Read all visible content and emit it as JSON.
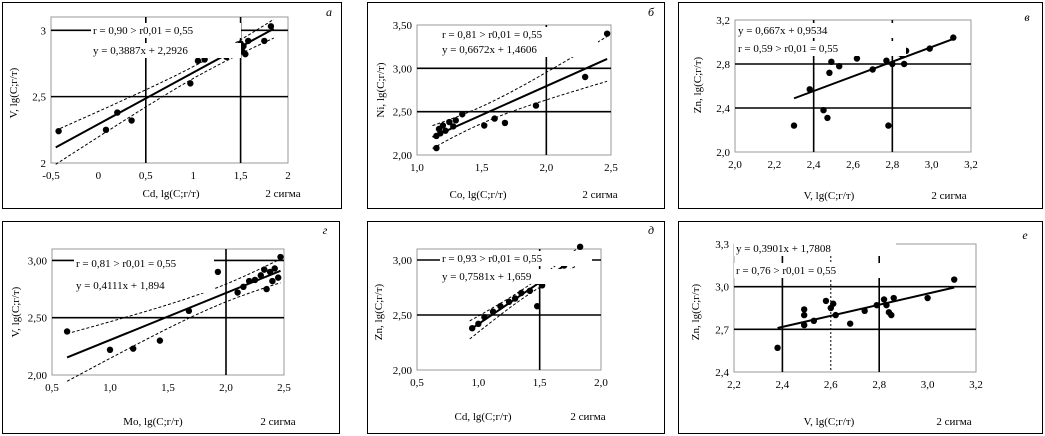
{
  "chart_data": [
    {
      "type": "scatter",
      "panel_letter": "а",
      "xlabel": "Cd, lg(C;г/т)",
      "ylabel": "V, lg(C;г/т)",
      "sigma_label": "2 сигма",
      "annotations": [
        "r = 0,90 > r0,01 = 0,55",
        "y = 0,3887x + 2,2926"
      ],
      "xlim": [
        -0.5,
        2
      ],
      "ylim": [
        2,
        3.1
      ],
      "xticks": [
        "-0,5",
        "0",
        "0,5",
        "1",
        "1,5",
        "2"
      ],
      "yticks": [
        "2",
        "2,5",
        "3"
      ],
      "x_tick_values": [
        -0.5,
        0,
        0.5,
        1,
        1.5,
        2
      ],
      "y_tick_values": [
        2,
        2.5,
        3
      ],
      "grid_x": [
        0.5,
        1.5
      ],
      "grid_y": [
        2.5,
        3
      ],
      "points": [
        [
          -0.42,
          2.24
        ],
        [
          0.08,
          2.25
        ],
        [
          0.2,
          2.38
        ],
        [
          0.35,
          2.32
        ],
        [
          0.97,
          2.6
        ],
        [
          1.05,
          2.77
        ],
        [
          1.08,
          2.83
        ],
        [
          1.12,
          2.78
        ],
        [
          1.15,
          2.85
        ],
        [
          1.2,
          2.82
        ],
        [
          1.27,
          2.87
        ],
        [
          1.35,
          2.8
        ],
        [
          1.45,
          2.88
        ],
        [
          1.48,
          2.86
        ],
        [
          1.5,
          2.9
        ],
        [
          1.52,
          2.84
        ],
        [
          1.53,
          2.88
        ],
        [
          1.55,
          2.82
        ],
        [
          1.58,
          2.92
        ],
        [
          1.75,
          2.92
        ],
        [
          1.82,
          3.03
        ]
      ],
      "fit": {
        "slope": 0.3887,
        "intercept": 2.2926,
        "x_range": [
          -0.45,
          1.85
        ]
      },
      "confidence_band": true
    },
    {
      "type": "scatter",
      "panel_letter": "б",
      "xlabel": "Co, lg(C;г/т)",
      "ylabel": "Ni, lg(C;г/т)",
      "sigma_label": "2 сигма",
      "annotations": [
        "r = 0,81 > r0,01 = 0,55",
        "y = 0,6672x + 1,4606"
      ],
      "xlim": [
        1,
        2.5
      ],
      "ylim": [
        2,
        3.5
      ],
      "xticks": [
        "1,0",
        "1,5",
        "2,0",
        "2,5"
      ],
      "yticks": [
        "2,00",
        "2,50",
        "3,00",
        "3,50"
      ],
      "x_tick_values": [
        1,
        1.5,
        2,
        2.5
      ],
      "y_tick_values": [
        2,
        2.5,
        3,
        3.5
      ],
      "grid_x": [
        2
      ],
      "grid_y": [
        2.5,
        3
      ],
      "points": [
        [
          1.15,
          2.08
        ],
        [
          1.15,
          2.22
        ],
        [
          1.17,
          2.3
        ],
        [
          1.18,
          2.25
        ],
        [
          1.2,
          2.34
        ],
        [
          1.22,
          2.28
        ],
        [
          1.25,
          2.38
        ],
        [
          1.28,
          2.33
        ],
        [
          1.3,
          2.4
        ],
        [
          1.35,
          2.47
        ],
        [
          1.52,
          2.34
        ],
        [
          1.6,
          2.42
        ],
        [
          1.68,
          2.37
        ],
        [
          1.92,
          2.57
        ],
        [
          2.3,
          2.9
        ],
        [
          2.47,
          3.4
        ]
      ],
      "fit": {
        "slope": 0.6672,
        "intercept": 1.4606,
        "x_range": [
          1.12,
          2.47
        ]
      },
      "confidence_band": true
    },
    {
      "type": "scatter",
      "panel_letter": "в",
      "xlabel": "V, lg(C;г/т)",
      "ylabel": "Zn, lg(C;г/т)",
      "sigma_label": "2 сигма",
      "annotations": [
        "y = 0,667x + 0,9534",
        "r = 0,59 > r0,01 = 0,55"
      ],
      "xlim": [
        2,
        3.2
      ],
      "ylim": [
        2,
        3.2
      ],
      "xticks": [
        "2,0",
        "2,2",
        "2,4",
        "2,6",
        "2,8",
        "3,0",
        "3,2"
      ],
      "yticks": [
        "2,0",
        "2,4",
        "2,8",
        "3,2"
      ],
      "x_tick_values": [
        2,
        2.2,
        2.4,
        2.6,
        2.8,
        3,
        3.2
      ],
      "y_tick_values": [
        2,
        2.4,
        2.8,
        3.2
      ],
      "grid_x": [
        2.4,
        2.8
      ],
      "grid_y": [
        2.4,
        2.8
      ],
      "points": [
        [
          2.3,
          2.24
        ],
        [
          2.38,
          2.57
        ],
        [
          2.45,
          2.38
        ],
        [
          2.47,
          2.31
        ],
        [
          2.48,
          2.72
        ],
        [
          2.49,
          2.82
        ],
        [
          2.53,
          2.78
        ],
        [
          2.58,
          2.92
        ],
        [
          2.62,
          2.9
        ],
        [
          2.62,
          2.85
        ],
        [
          2.7,
          2.75
        ],
        [
          2.77,
          2.83
        ],
        [
          2.78,
          2.24
        ],
        [
          2.8,
          2.8
        ],
        [
          2.83,
          2.9
        ],
        [
          2.85,
          2.88
        ],
        [
          2.86,
          2.8
        ],
        [
          2.87,
          2.92
        ],
        [
          2.99,
          2.94
        ],
        [
          3.11,
          3.04
        ]
      ],
      "fit": {
        "slope": 0.667,
        "intercept": 0.9534,
        "x_range": [
          2.3,
          3.11
        ]
      },
      "confidence_band": false
    },
    {
      "type": "scatter",
      "panel_letter": "г",
      "xlabel": "Mo, lg(C;г/т)",
      "ylabel": "V, lg(C;г/т)",
      "sigma_label": "2 сигма",
      "annotations": [
        "r = 0,81 > r0,01 = 0,55",
        "y = 0,4111x + 1,894"
      ],
      "xlim": [
        0.5,
        2.5
      ],
      "ylim": [
        2,
        3.1
      ],
      "xticks": [
        "0,5",
        "1,0",
        "1,5",
        "2,0",
        "2,5"
      ],
      "yticks": [
        "2,00",
        "2,50",
        "3,00"
      ],
      "x_tick_values": [
        0.5,
        1,
        1.5,
        2,
        2.5
      ],
      "y_tick_values": [
        2,
        2.5,
        3
      ],
      "grid_x": [
        2
      ],
      "grid_y": [
        2.5,
        3
      ],
      "points": [
        [
          0.63,
          2.38
        ],
        [
          1.0,
          2.22
        ],
        [
          1.2,
          2.23
        ],
        [
          1.43,
          2.3
        ],
        [
          1.68,
          2.56
        ],
        [
          1.93,
          2.9
        ],
        [
          2.1,
          2.72
        ],
        [
          2.15,
          2.77
        ],
        [
          2.2,
          2.82
        ],
        [
          2.25,
          2.83
        ],
        [
          2.3,
          2.87
        ],
        [
          2.33,
          2.92
        ],
        [
          2.35,
          2.75
        ],
        [
          2.38,
          2.9
        ],
        [
          2.4,
          2.82
        ],
        [
          2.42,
          2.93
        ],
        [
          2.45,
          2.85
        ],
        [
          2.47,
          3.03
        ]
      ],
      "fit": {
        "slope": 0.4111,
        "intercept": 1.894,
        "x_range": [
          0.63,
          2.47
        ]
      },
      "confidence_band": true
    },
    {
      "type": "scatter",
      "panel_letter": "д",
      "xlabel": "Cd, lg(C;г/т)",
      "ylabel": "Zn, lg(C;г/т)",
      "sigma_label": "2 сигма",
      "annotations": [
        "r = 0,93 > r0,01 = 0,55",
        "y = 0,7581x + 1,659"
      ],
      "xlim": [
        0.5,
        2
      ],
      "ylim": [
        2,
        3.1
      ],
      "xticks": [
        "0,5",
        "1,0",
        "1,5",
        "2,0"
      ],
      "yticks": [
        "2,00",
        "2,50",
        "3,00"
      ],
      "x_tick_values": [
        0.5,
        1,
        1.5,
        2
      ],
      "y_tick_values": [
        2,
        2.5,
        3
      ],
      "grid_x": [
        1.5
      ],
      "grid_y": [
        2.5,
        3
      ],
      "points": [
        [
          0.95,
          2.38
        ],
        [
          1.0,
          2.42
        ],
        [
          1.05,
          2.48
        ],
        [
          1.12,
          2.53
        ],
        [
          1.18,
          2.58
        ],
        [
          1.25,
          2.62
        ],
        [
          1.3,
          2.65
        ],
        [
          1.35,
          2.7
        ],
        [
          1.42,
          2.72
        ],
        [
          1.48,
          2.58
        ],
        [
          1.5,
          2.8
        ],
        [
          1.52,
          2.77
        ],
        [
          1.58,
          2.85
        ],
        [
          1.62,
          2.88
        ],
        [
          1.7,
          2.95
        ],
        [
          1.75,
          3.0
        ],
        [
          1.83,
          3.12
        ]
      ],
      "fit": {
        "slope": 0.7581,
        "intercept": 1.659,
        "x_range": [
          0.93,
          1.84
        ]
      },
      "confidence_band": true
    },
    {
      "type": "scatter",
      "panel_letter": "е",
      "xlabel": "V, lg(C;г/т)",
      "ylabel": "Zn, lg(C;г/т)",
      "sigma_label": "2 сигма",
      "annotations": [
        "y = 0,3901x + 1,7808",
        "r = 0,76 > r0,01 = 0,55"
      ],
      "xlim": [
        2.2,
        3.2
      ],
      "ylim": [
        2.4,
        3.3
      ],
      "xticks": [
        "2,2",
        "2,4",
        "2,6",
        "2,8",
        "3,0",
        "3,2"
      ],
      "yticks": [
        "2,4",
        "2,7",
        "3,0",
        "3,3"
      ],
      "x_tick_values": [
        2.2,
        2.4,
        2.6,
        2.8,
        3,
        3.2
      ],
      "y_tick_values": [
        2.4,
        2.7,
        3,
        3.3
      ],
      "grid_x": [
        2.4,
        2.8
      ],
      "grid_y": [
        2.7,
        3
      ],
      "dashed_x": [
        2.6
      ],
      "points": [
        [
          2.38,
          2.57
        ],
        [
          2.49,
          2.73
        ],
        [
          2.49,
          2.8
        ],
        [
          2.49,
          2.84
        ],
        [
          2.53,
          2.76
        ],
        [
          2.58,
          2.9
        ],
        [
          2.6,
          2.85
        ],
        [
          2.61,
          2.88
        ],
        [
          2.62,
          2.8
        ],
        [
          2.68,
          2.74
        ],
        [
          2.74,
          2.83
        ],
        [
          2.79,
          2.87
        ],
        [
          2.82,
          2.91
        ],
        [
          2.83,
          2.87
        ],
        [
          2.84,
          2.82
        ],
        [
          2.85,
          2.8
        ],
        [
          2.86,
          2.92
        ],
        [
          3.0,
          2.92
        ],
        [
          3.11,
          3.05
        ]
      ],
      "fit": {
        "slope": 0.3901,
        "intercept": 1.7808,
        "x_range": [
          2.38,
          3.11
        ]
      },
      "confidence_band": false
    }
  ]
}
